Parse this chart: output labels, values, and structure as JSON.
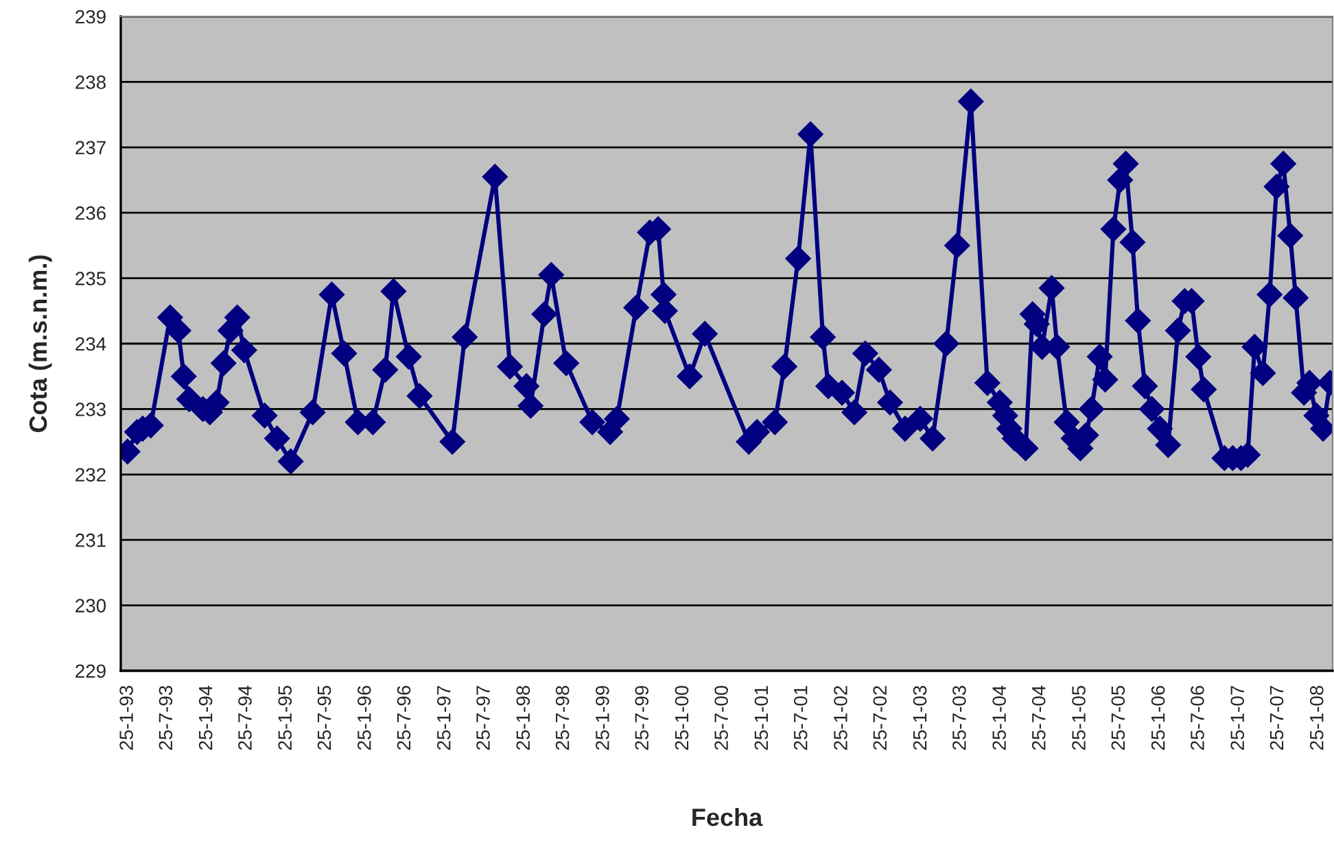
{
  "chart_data": {
    "type": "line",
    "xlabel": "Fecha",
    "ylabel": "Cota (m.s.n.m.)",
    "x": [
      "1993-01-23",
      "1993-03-08",
      "1993-04-03",
      "1993-05-10",
      "1993-08-07",
      "1993-09-14",
      "1993-10-09",
      "1993-11-03",
      "1994-01-05",
      "1994-02-06",
      "1994-03-09",
      "1994-04-10",
      "1994-05-12",
      "1994-06-12",
      "1994-07-14",
      "1994-10-16",
      "1994-12-12",
      "1995-02-13",
      "1995-05-25",
      "1995-08-21",
      "1995-10-17",
      "1995-12-19",
      "1996-02-26",
      "1996-04-23",
      "1996-05-31",
      "1996-08-09",
      "1996-09-28",
      "1997-02-26",
      "1997-04-24",
      "1997-09-10",
      "1997-11-18",
      "1998-02-02",
      "1998-02-21",
      "1998-04-25",
      "1998-05-27",
      "1998-08-04",
      "1998-12-02",
      "1999-02-22",
      "1999-03-25",
      "1999-06-22",
      "1999-08-24",
      "1999-10-01",
      "1999-10-26",
      "1999-11-01",
      "2000-02-23",
      "2000-05-03",
      "2000-11-21",
      "2000-12-29",
      "2001-03-21",
      "2001-05-04",
      "2001-07-06",
      "2001-09-01",
      "2001-10-28",
      "2001-11-22",
      "2002-01-24",
      "2002-03-22",
      "2002-05-11",
      "2002-07-13",
      "2002-09-02",
      "2002-11-10",
      "2003-01-19",
      "2003-03-17",
      "2003-05-19",
      "2003-07-08",
      "2003-09-09",
      "2003-11-24",
      "2004-01-20",
      "2004-02-14",
      "2004-03-04",
      "2004-03-29",
      "2004-05-18",
      "2004-06-19",
      "2004-07-08",
      "2004-08-02",
      "2004-09-15",
      "2004-10-10",
      "2004-11-23",
      "2004-12-25",
      "2005-01-25",
      "2005-02-20",
      "2005-03-17",
      "2005-04-24",
      "2005-05-19",
      "2005-06-26",
      "2005-07-27",
      "2005-08-22",
      "2005-09-22",
      "2005-10-17",
      "2005-11-18",
      "2005-12-20",
      "2006-01-26",
      "2006-03-05",
      "2006-04-19",
      "2006-05-20",
      "2006-06-21",
      "2006-07-22",
      "2006-08-16",
      "2006-11-19",
      "2006-12-27",
      "2007-02-03",
      "2007-03-06",
      "2007-04-07",
      "2007-05-15",
      "2007-06-15",
      "2007-07-17",
      "2007-08-17",
      "2007-09-18",
      "2007-10-13",
      "2007-11-20",
      "2007-12-15",
      "2008-01-16",
      "2008-02-16",
      "2008-03-19"
    ],
    "series": [
      {
        "color": "#000080",
        "values": [
          232.35,
          232.65,
          232.7,
          232.75,
          234.4,
          234.2,
          233.5,
          233.15,
          233.0,
          232.95,
          233.1,
          233.7,
          234.2,
          234.4,
          233.9,
          232.9,
          232.55,
          232.2,
          232.95,
          234.75,
          233.85,
          232.8,
          232.8,
          233.6,
          234.8,
          233.8,
          233.2,
          232.5,
          234.1,
          236.55,
          233.65,
          233.35,
          233.05,
          234.45,
          235.05,
          233.7,
          232.8,
          232.65,
          232.85,
          234.55,
          235.7,
          235.75,
          234.75,
          234.5,
          233.5,
          234.15,
          232.5,
          232.65,
          232.8,
          233.65,
          235.3,
          237.2,
          234.1,
          233.35,
          233.25,
          232.95,
          233.85,
          233.6,
          233.1,
          232.7,
          232.85,
          232.55,
          234.0,
          235.5,
          237.7,
          233.4,
          233.1,
          232.9,
          232.7,
          232.55,
          232.4,
          234.45,
          234.3,
          233.95,
          234.85,
          233.95,
          232.8,
          232.55,
          232.4,
          232.6,
          233.0,
          233.8,
          233.45,
          235.75,
          236.5,
          236.75,
          235.55,
          234.35,
          233.35,
          233.0,
          232.7,
          232.45,
          234.2,
          234.65,
          234.65,
          233.8,
          233.3,
          232.25,
          232.25,
          232.25,
          232.3,
          233.95,
          233.55,
          234.75,
          236.4,
          236.75,
          235.65,
          234.7,
          233.25,
          233.4,
          232.9,
          232.7,
          233.4
        ]
      }
    ],
    "xlim": [
      "1992-12-23",
      "2008-03-31"
    ],
    "xticks": [
      {
        "value": "1993-01-25",
        "label": "25-1-93"
      },
      {
        "value": "1993-07-25",
        "label": "25-7-93"
      },
      {
        "value": "1994-01-25",
        "label": "25-1-94"
      },
      {
        "value": "1994-07-25",
        "label": "25-7-94"
      },
      {
        "value": "1995-01-25",
        "label": "25-1-95"
      },
      {
        "value": "1995-07-25",
        "label": "25-7-95"
      },
      {
        "value": "1996-01-25",
        "label": "25-1-96"
      },
      {
        "value": "1996-07-25",
        "label": "25-7-96"
      },
      {
        "value": "1997-01-25",
        "label": "25-1-97"
      },
      {
        "value": "1997-07-25",
        "label": "25-7-97"
      },
      {
        "value": "1998-01-25",
        "label": "25-1-98"
      },
      {
        "value": "1998-07-25",
        "label": "25-7-98"
      },
      {
        "value": "1999-01-25",
        "label": "25-1-99"
      },
      {
        "value": "1999-07-25",
        "label": "25-7-99"
      },
      {
        "value": "2000-01-25",
        "label": "25-1-00"
      },
      {
        "value": "2000-07-25",
        "label": "25-7-00"
      },
      {
        "value": "2001-01-25",
        "label": "25-1-01"
      },
      {
        "value": "2001-07-25",
        "label": "25-7-01"
      },
      {
        "value": "2002-01-25",
        "label": "25-1-02"
      },
      {
        "value": "2002-07-25",
        "label": "25-7-02"
      },
      {
        "value": "2003-01-25",
        "label": "25-1-03"
      },
      {
        "value": "2003-07-25",
        "label": "25-7-03"
      },
      {
        "value": "2004-01-25",
        "label": "25-1-04"
      },
      {
        "value": "2004-07-25",
        "label": "25-7-04"
      },
      {
        "value": "2005-01-25",
        "label": "25-1-05"
      },
      {
        "value": "2005-07-25",
        "label": "25-7-05"
      },
      {
        "value": "2006-01-25",
        "label": "25-1-06"
      },
      {
        "value": "2006-07-25",
        "label": "25-7-06"
      },
      {
        "value": "2007-01-25",
        "label": "25-1-07"
      },
      {
        "value": "2007-07-25",
        "label": "25-7-07"
      },
      {
        "value": "2008-01-25",
        "label": "25-1-08"
      }
    ],
    "ylim": [
      229,
      239
    ],
    "yticks": [
      229,
      230,
      231,
      232,
      233,
      234,
      235,
      236,
      237,
      238,
      239
    ],
    "grid": "y",
    "marker": "diamond",
    "line_style": "solid",
    "legend": false
  }
}
